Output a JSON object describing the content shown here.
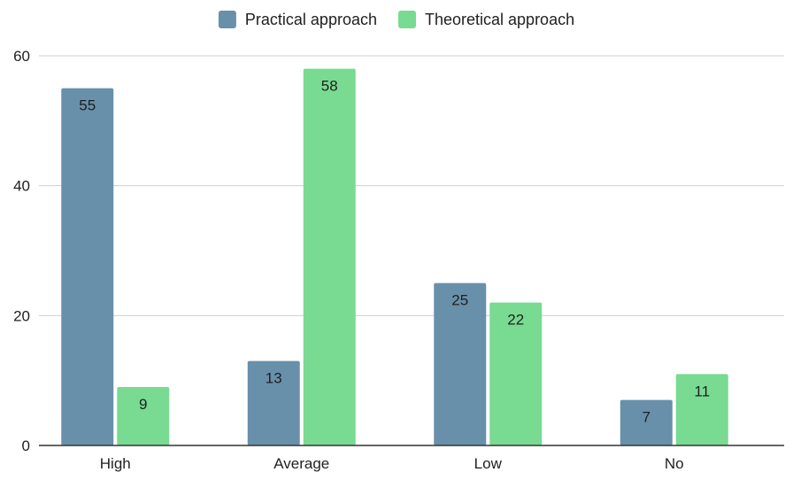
{
  "chart_data": {
    "type": "bar",
    "title": "",
    "xlabel": "",
    "ylabel": "",
    "categories": [
      "High",
      "Average",
      "Low",
      "No"
    ],
    "series": [
      {
        "name": "Practical approach",
        "values": [
          55,
          13,
          25,
          7
        ],
        "color": "#6890AB"
      },
      {
        "name": "Theoretical approach",
        "values": [
          9,
          58,
          22,
          11
        ],
        "color": "#79DA91"
      }
    ],
    "ylim": [
      0,
      60
    ],
    "yticks": [
      0,
      20,
      40,
      60
    ],
    "grid": true,
    "legend_position": "top-center",
    "data_labels": true
  }
}
